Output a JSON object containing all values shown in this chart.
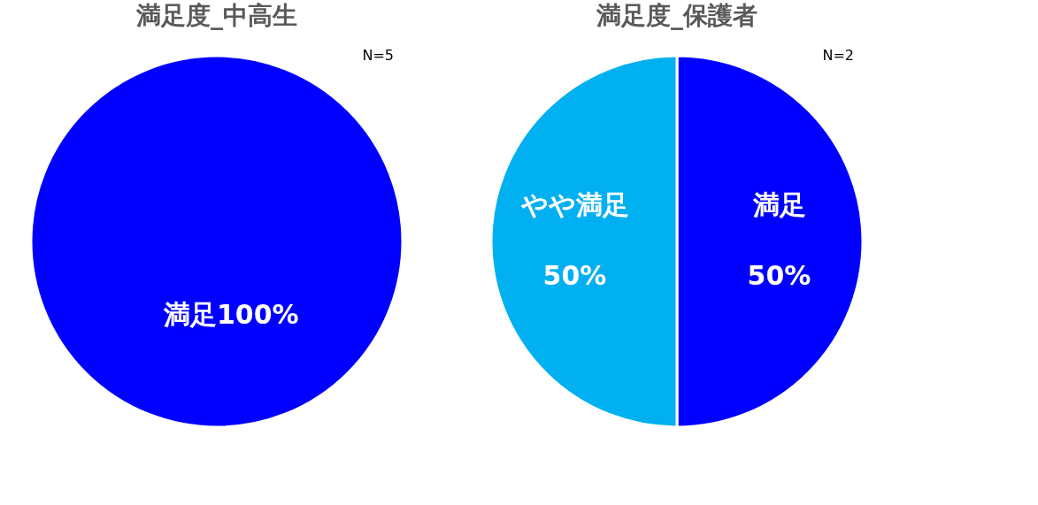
{
  "chart_data": [
    {
      "type": "pie",
      "title": "満足度_中高生",
      "categories": [
        "満足"
      ],
      "values": [
        100
      ],
      "colors": [
        "#0000ff"
      ],
      "value_labels": [
        "100%"
      ],
      "annotations": [
        "N=5"
      ]
    },
    {
      "type": "pie",
      "title": "満足度_保護者",
      "categories": [
        "満足",
        "やや満足"
      ],
      "values": [
        50,
        50
      ],
      "colors": [
        "#0000ff",
        "#00b0f0"
      ],
      "value_labels": [
        "50%",
        "50%"
      ],
      "annotations": [
        "N=2"
      ]
    }
  ]
}
